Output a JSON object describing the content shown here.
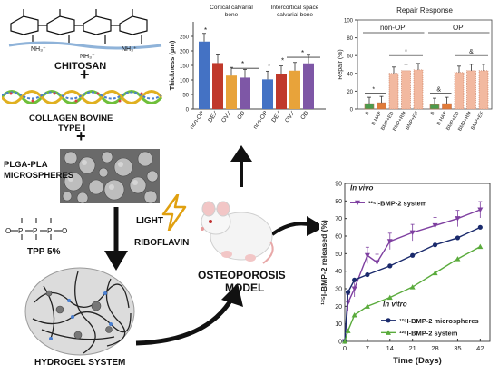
{
  "left_column": {
    "chitosan_label": "CHITOSAN",
    "nh3_labels": [
      "NH₃⁺",
      "NH₃⁺",
      "NH₃⁺"
    ],
    "plus_1": "+",
    "collagen_label_1": "COLLAGEN BOVINE",
    "collagen_label_2": "TYPE I",
    "plus_2": "+",
    "microspheres_label_1": "PLGA-PLA",
    "microspheres_label_2": "MICROSPHERES",
    "tpp_label": "TPP 5%",
    "tpp_formula": "O⁻  O  O  O⁻",
    "hydrogel_label": "HYDROGEL SYSTEM"
  },
  "center": {
    "light_label": "LIGHT",
    "riboflavin_label": "RIBOFLAVIN",
    "model_label_1": "OSTEOPOROSIS",
    "model_label_2": "MODEL"
  },
  "charts": {
    "thickness": {
      "ylabel": "Thickness (µm)",
      "yticks": [
        "0",
        "50",
        "100",
        "150",
        "200",
        "250"
      ],
      "panel_titles": [
        "Cortical calvarial bone",
        "Intercortical space calvarial bone"
      ],
      "significance": [
        "*",
        "*"
      ]
    },
    "repair": {
      "title": "Repair Response",
      "ylabel": "Repair (%)",
      "yticks": [
        "0",
        "20",
        "40",
        "60",
        "80",
        "100"
      ],
      "group_labels": [
        "non-OP",
        "OP"
      ],
      "significance": [
        "*",
        "*",
        "&",
        "&"
      ]
    },
    "release": {
      "ylabel": "¹²⁵I-BMP-2 released (%)",
      "xlabel": "Time (Days)",
      "xticks": [
        "0",
        "7",
        "14",
        "21",
        "28",
        "35",
        "42"
      ],
      "yticks": [
        "0",
        "10",
        "20",
        "30",
        "40",
        "50",
        "60",
        "70",
        "80",
        "90"
      ],
      "in_vivo_label": "In vivo",
      "in_vivo_series_label": "¹²⁵I-BMP-2 system",
      "in_vitro_label": "In vitro",
      "legend_microspheres": "¹²⁵I-BMP-2 microspheres",
      "legend_system": "¹²⁵I-BMP-2 system"
    }
  },
  "chart_data": [
    {
      "type": "bar",
      "title": "Cortical calvarial bone",
      "ylabel": "Thickness (µm)",
      "ylim": [
        0,
        300
      ],
      "categories": [
        "non-OP",
        "DEX",
        "OVX",
        "OD"
      ],
      "values": [
        232,
        158,
        115,
        108
      ],
      "colors": [
        "#4472c4",
        "#c0392b",
        "#e8a33a",
        "#7e57a6"
      ]
    },
    {
      "type": "bar",
      "title": "Intercortical space calvarial bone",
      "ylabel": "Thickness (µm)",
      "ylim": [
        0,
        300
      ],
      "categories": [
        "non-OP",
        "DEX",
        "OVX",
        "OD"
      ],
      "values": [
        102,
        120,
        132,
        157
      ],
      "colors": [
        "#4472c4",
        "#c0392b",
        "#e8a33a",
        "#7e57a6"
      ]
    },
    {
      "type": "bar",
      "title": "Repair Response",
      "ylabel": "Repair (%)",
      "ylim": [
        0,
        100
      ],
      "categories": [
        "B",
        "B HAP",
        "BMP+ED",
        "BMP+RM",
        "BMP+EF",
        "B",
        "B HAP",
        "BMP+ED",
        "BMP+RM",
        "BMP+EF"
      ],
      "values": [
        6,
        7,
        40,
        43,
        44,
        5,
        6,
        41,
        43,
        43
      ],
      "colors": [
        "#4c9a4c",
        "#e07b39",
        "#f2b9a0",
        "#f2b9a0",
        "#f2b9a0",
        "#4c9a4c",
        "#e07b39",
        "#f2b9a0",
        "#f2b9a0",
        "#f2b9a0"
      ]
    },
    {
      "type": "line",
      "xlabel": "Time (Days)",
      "ylabel": "¹²⁵I-BMP-2 released (%)",
      "xlim": [
        0,
        45
      ],
      "ylim": [
        0,
        90
      ],
      "series": [
        {
          "name": "¹²⁵I-BMP-2 system",
          "color": "#7e3fa0",
          "marker": "triangle-down",
          "x": [
            0,
            1,
            3,
            7,
            10,
            14,
            21,
            28,
            35,
            42
          ],
          "y": [
            0,
            22,
            30,
            49,
            45,
            57,
            62,
            66,
            70,
            75
          ]
        },
        {
          "name": "¹²⁵I-BMP-2 microspheres",
          "color": "#1a2a6c",
          "marker": "circle",
          "x": [
            0,
            1,
            3,
            7,
            14,
            21,
            28,
            35,
            42
          ],
          "y": [
            0,
            28,
            35,
            38,
            43,
            49,
            55,
            59,
            65
          ]
        },
        {
          "name": "¹²⁵I-BMP-2 system",
          "color": "#5aab3c",
          "marker": "triangle-up",
          "x": [
            0,
            1,
            3,
            7,
            14,
            21,
            28,
            35,
            42
          ],
          "y": [
            0,
            6,
            15,
            20,
            25,
            31,
            39,
            47,
            54
          ]
        }
      ]
    }
  ]
}
